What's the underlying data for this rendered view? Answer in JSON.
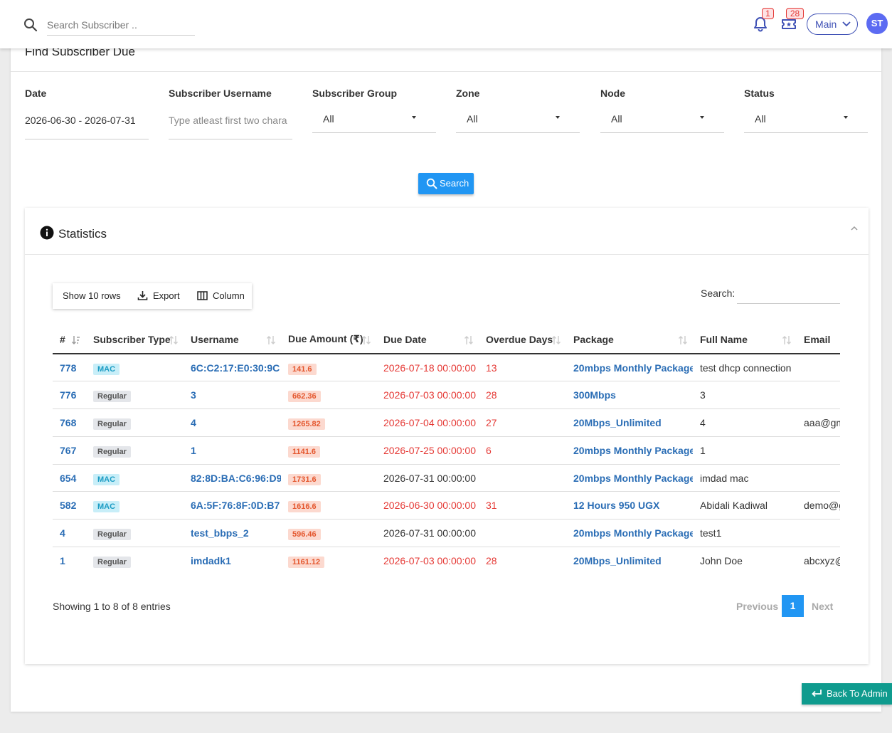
{
  "topbar": {
    "search_placeholder": "Search Subscriber ..",
    "bell_count": "1",
    "ticket_count": "28",
    "workspace": "Main",
    "avatar_initials": "ST",
    "accent": "#3f51b5"
  },
  "page": {
    "title": "Find Subscriber Due"
  },
  "filters": {
    "date_label": "Date",
    "date_value": "2026-06-30 - 2026-07-31",
    "username_label": "Subscriber Username",
    "username_placeholder": "Type atleast first two chara",
    "group_label": "Subscriber Group",
    "group_value": "All",
    "zone_label": "Zone",
    "zone_value": "All",
    "node_label": "Node",
    "node_value": "All",
    "status_label": "Status",
    "status_value": "All",
    "search_button": "Search"
  },
  "stats": {
    "title": "Statistics",
    "toolbar": {
      "show_rows": "Show 10 rows",
      "export": "Export",
      "column": "Column"
    },
    "search_label": "Search:",
    "columns": [
      "#",
      "Subscriber Type",
      "Username",
      "Due Amount (₹)",
      "Due Date",
      "Overdue Days",
      "Package",
      "Full Name",
      "Email"
    ],
    "rows": [
      {
        "id": "778",
        "type": "MAC",
        "username": "6C:C2:17:E0:30:9C",
        "due": "141.6",
        "due_date": "2026-07-18 00:00:00",
        "overdue": "13",
        "package": "20mbps Monthly Package",
        "full_name": "test dhcp connection",
        "email": ""
      },
      {
        "id": "776",
        "type": "Regular",
        "username": "3",
        "due": "662.36",
        "due_date": "2026-07-03 00:00:00",
        "overdue": "28",
        "package": "300Mbps",
        "full_name": "3",
        "email": ""
      },
      {
        "id": "768",
        "type": "Regular",
        "username": "4",
        "due": "1265.82",
        "due_date": "2026-07-04 00:00:00",
        "overdue": "27",
        "package": "20Mbps_Unlimited",
        "full_name": "4",
        "email": "aaa@gm"
      },
      {
        "id": "767",
        "type": "Regular",
        "username": "1",
        "due": "1141.6",
        "due_date": "2026-07-25 00:00:00",
        "overdue": "6",
        "package": "20mbps Monthly Package",
        "full_name": "1",
        "email": ""
      },
      {
        "id": "654",
        "type": "MAC",
        "username": "82:8D:BA:C6:96:D9",
        "due": "1731.6",
        "due_date": "2026-07-31 00:00:00",
        "overdue": "",
        "package": "20mbps Monthly Package",
        "full_name": "imdad mac",
        "email": ""
      },
      {
        "id": "582",
        "type": "MAC",
        "username": "6A:5F:76:8F:0D:B7",
        "due": "1616.6",
        "due_date": "2026-06-30 00:00:00",
        "overdue": "31",
        "package": "12 Hours 950 UGX",
        "full_name": "Abidali Kadiwal",
        "email": "demo@g"
      },
      {
        "id": "4",
        "type": "Regular",
        "username": "test_bbps_2",
        "due": "596.46",
        "due_date": "2026-07-31 00:00:00",
        "overdue": "",
        "package": "20mbps Monthly Package",
        "full_name": "test1",
        "email": ""
      },
      {
        "id": "1",
        "type": "Regular",
        "username": "imdadk1",
        "due": "1161.12",
        "due_date": "2026-07-03 00:00:00",
        "overdue": "28",
        "package": "20Mbps_Unlimited",
        "full_name": "John Doe",
        "email": "abcxyz@"
      }
    ],
    "info": "Showing 1 to 8 of 8 entries",
    "pagination": {
      "previous": "Previous",
      "current": "1",
      "next": "Next"
    }
  },
  "back_button": "Back To Admin",
  "colors": {
    "primary": "#2196f3",
    "link": "#2a6db5",
    "overdue": "#e53935",
    "back": "#0f9b8e"
  }
}
